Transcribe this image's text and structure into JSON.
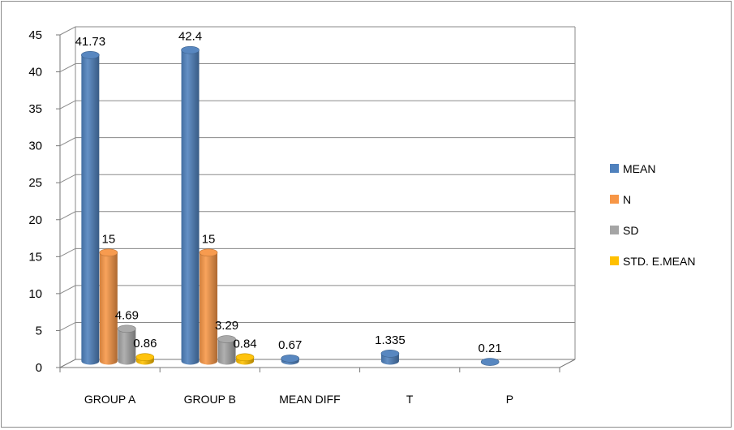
{
  "chart_data": {
    "type": "bar",
    "categories": [
      "GROUP A",
      "GROUP B",
      "MEAN DIFF",
      "T",
      "P"
    ],
    "series": [
      {
        "name": "MEAN",
        "color": "#4F81BD",
        "values": [
          41.73,
          42.4,
          0.67,
          1.335,
          0.21
        ]
      },
      {
        "name": "N",
        "color": "#F79646",
        "values": [
          15,
          15,
          null,
          null,
          null
        ]
      },
      {
        "name": "SD",
        "color": "#A5A5A5",
        "values": [
          4.69,
          3.29,
          null,
          null,
          null
        ]
      },
      {
        "name": "STD. E.MEAN",
        "color": "#FFC000",
        "values": [
          0.86,
          0.84,
          null,
          null,
          null
        ]
      }
    ],
    "data_labels": [
      [
        "41.73",
        "42.4",
        "0.67",
        "1.335",
        "0.21"
      ],
      [
        "15",
        "15",
        null,
        null,
        null
      ],
      [
        "4.69",
        "3.29",
        null,
        null,
        null
      ],
      [
        "0.86",
        "0.84",
        null,
        null,
        null
      ]
    ],
    "y_ticks": [
      "0",
      "5",
      "10",
      "15",
      "20",
      "25",
      "30",
      "35",
      "40",
      "45"
    ],
    "ylim": [
      0,
      45
    ],
    "ystep": 5,
    "grid": true,
    "style": "3d-cylinder",
    "legend_position": "right",
    "title": "",
    "xlabel": "",
    "ylabel": ""
  }
}
